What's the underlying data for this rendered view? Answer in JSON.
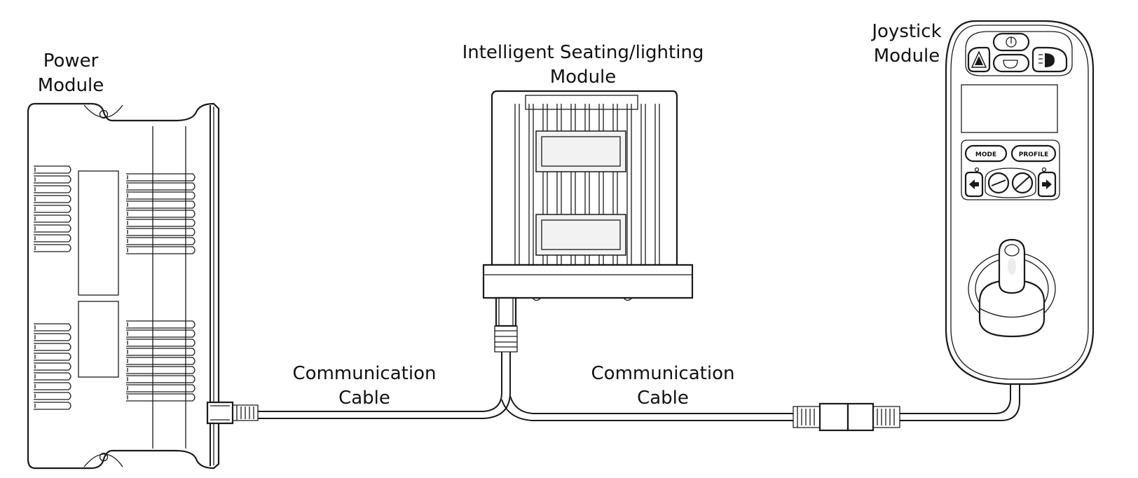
{
  "labels": {
    "power_module": [
      "Power",
      "Module"
    ],
    "seating_module": [
      "Intelligent Seating/lighting",
      "Module"
    ],
    "joystick_module": [
      "Joystick",
      "Module"
    ],
    "cable_left": [
      "Communication",
      "Cable"
    ],
    "cable_right": [
      "Communication",
      "Cable"
    ]
  },
  "joystick_buttons": {
    "mode": "MODE",
    "profile": "PROFILE"
  },
  "icons": [
    "power-icon",
    "hazard-icon",
    "horn-icon",
    "light-icon",
    "left-arrow-icon",
    "right-arrow-icon",
    "speed-down-icon",
    "speed-up-icon"
  ]
}
